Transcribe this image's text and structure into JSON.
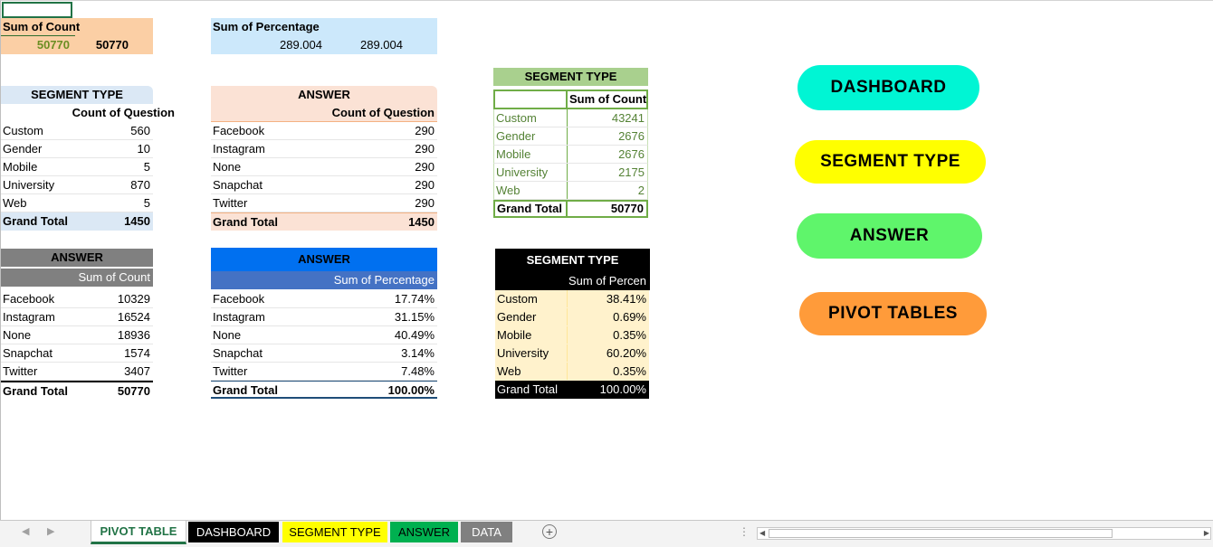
{
  "sum_count_box": {
    "header": "Sum of Count",
    "value1": "50770",
    "value2": "50770"
  },
  "sum_pct_box": {
    "header": "Sum of Percentage",
    "value1": "289.004",
    "value2": "289.004"
  },
  "seg_count": {
    "title": "SEGMENT TYPE",
    "value_header": "Count of Question",
    "rows": [
      {
        "label": "Custom",
        "value": "560"
      },
      {
        "label": "Gender",
        "value": "10"
      },
      {
        "label": "Mobile",
        "value": "5"
      },
      {
        "label": "University",
        "value": "870"
      },
      {
        "label": "Web",
        "value": "5"
      }
    ],
    "total_label": "Grand Total",
    "total_value": "1450"
  },
  "ans_count": {
    "title": "ANSWER",
    "value_header": "Count of Question",
    "rows": [
      {
        "label": "Facebook",
        "value": "290"
      },
      {
        "label": "Instagram",
        "value": "290"
      },
      {
        "label": "None",
        "value": "290"
      },
      {
        "label": "Snapchat",
        "value": "290"
      },
      {
        "label": "Twitter",
        "value": "290"
      }
    ],
    "total_label": "Grand Total",
    "total_value": "1450"
  },
  "seg_sum": {
    "title": "SEGMENT TYPE",
    "value_header": "Sum of Count",
    "rows": [
      {
        "label": "Custom",
        "value": "43241"
      },
      {
        "label": "Gender",
        "value": "2676"
      },
      {
        "label": "Mobile",
        "value": "2676"
      },
      {
        "label": "University",
        "value": "2175"
      },
      {
        "label": "Web",
        "value": "2"
      }
    ],
    "total_label": "Grand Total",
    "total_value": "50770"
  },
  "ans_sum": {
    "title": "ANSWER",
    "value_header": "Sum of Count",
    "rows": [
      {
        "label": "Facebook",
        "value": "10329"
      },
      {
        "label": "Instagram",
        "value": "16524"
      },
      {
        "label": "None",
        "value": "18936"
      },
      {
        "label": "Snapchat",
        "value": "1574"
      },
      {
        "label": "Twitter",
        "value": "3407"
      }
    ],
    "total_label": "Grand Total",
    "total_value": "50770"
  },
  "ans_pct": {
    "title": "ANSWER",
    "value_header": "Sum of Percentage",
    "rows": [
      {
        "label": "Facebook",
        "value": "17.74%"
      },
      {
        "label": "Instagram",
        "value": "31.15%"
      },
      {
        "label": "None",
        "value": "40.49%"
      },
      {
        "label": "Snapchat",
        "value": "3.14%"
      },
      {
        "label": "Twitter",
        "value": "7.48%"
      }
    ],
    "total_label": "Grand Total",
    "total_value": "100.00%"
  },
  "seg_pct": {
    "title": "SEGMENT TYPE",
    "value_header": "Sum of Percen",
    "rows": [
      {
        "label": "Custom",
        "value": "38.41%"
      },
      {
        "label": "Gender",
        "value": "0.69%"
      },
      {
        "label": "Mobile",
        "value": "0.35%"
      },
      {
        "label": "University",
        "value": "60.20%"
      },
      {
        "label": "Web",
        "value": "0.35%"
      }
    ],
    "total_label": "Grand Total",
    "total_value": "100.00%"
  },
  "buttons": {
    "dashboard": "DASHBOARD",
    "segment": "SEGMENT TYPE",
    "answer": "ANSWER",
    "pivot": "PIVOT TABLES"
  },
  "tabs": [
    "PIVOT TABLE",
    "DASHBOARD",
    "SEGMENT TYPE",
    "ANSWER",
    "DATA"
  ],
  "nav": {
    "prev": "◀",
    "next": "▶",
    "add": "+",
    "menu": "⋮",
    "scroll_left": "◀",
    "scroll_right": "▶"
  },
  "colors": {
    "excel_green": "#217346",
    "dashboard_btn": "#00f5d4",
    "segment_btn": "#ffff00",
    "answer_btn": "#5ff56b",
    "pivot_btn": "#ff9b3a"
  }
}
